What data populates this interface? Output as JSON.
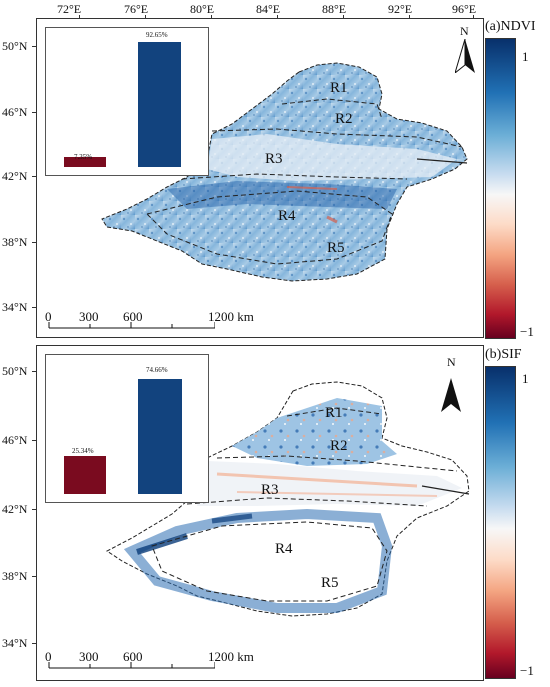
{
  "lon_ticks": [
    "72°E",
    "76°E",
    "80°E",
    "84°E",
    "88°E",
    "92°E",
    "96°E"
  ],
  "panels": [
    {
      "title": "(a)NDVI",
      "lat_ticks": [
        "50°N",
        "46°N",
        "42°N",
        "38°N",
        "34°N"
      ],
      "colorbar": {
        "max": "1",
        "min": "−1"
      },
      "north": "N",
      "scale": {
        "labels": [
          "0",
          "300",
          "600",
          "1200 km"
        ]
      },
      "regions": [
        "R1",
        "R2",
        "R3",
        "R4",
        "R5"
      ],
      "inset_bars": {
        "labels": [
          "7.35%",
          "92.65%"
        ],
        "values": [
          7.35,
          92.65
        ],
        "colors": [
          "#7a0b1f",
          "#12437e"
        ]
      }
    },
    {
      "title": "(b)SIF",
      "lat_ticks": [
        "50°N",
        "46°N",
        "42°N",
        "38°N",
        "34°N"
      ],
      "colorbar": {
        "max": "1",
        "min": "−1"
      },
      "north": "N",
      "scale": {
        "labels": [
          "0",
          "300",
          "600",
          "1200 km"
        ]
      },
      "regions": [
        "R1",
        "R2",
        "R3",
        "R4",
        "R5"
      ],
      "inset_bars": {
        "labels": [
          "25.34%",
          "74.66%"
        ],
        "values": [
          25.34,
          74.66
        ],
        "colors": [
          "#7a0b1f",
          "#12437e"
        ]
      }
    }
  ]
}
